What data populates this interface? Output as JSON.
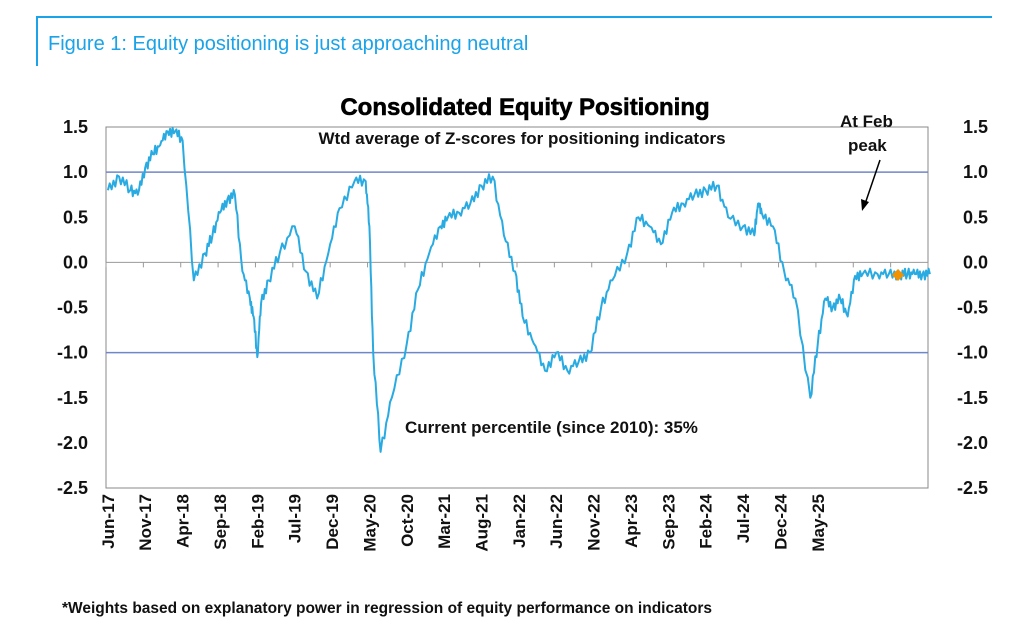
{
  "figure": {
    "title": "Figure 1: Equity positioning is just approaching neutral",
    "footnote": "*Weights based on explanatory power in regression of equity performance on indicators"
  },
  "chart_data": {
    "type": "line",
    "title": "Consolidated Equity Positioning",
    "subtitle": "Wtd average of Z-scores for positioning indicators",
    "xlabel": "",
    "ylabel": "",
    "ylim": [
      -2.5,
      1.5
    ],
    "yticks": [
      "1.5",
      "1.0",
      "0.5",
      "0.0",
      "-0.5",
      "-1.0",
      "-1.5",
      "-2.0",
      "-2.5"
    ],
    "xticks": [
      "Jun-17",
      "Nov-17",
      "Apr-18",
      "Sep-18",
      "Feb-19",
      "Jul-19",
      "Dec-19",
      "May-20",
      "Oct-20",
      "Mar-21",
      "Aug-21",
      "Jan-22",
      "Jun-22",
      "Nov-22",
      "Apr-23",
      "Sep-23",
      "Feb-24",
      "Jul-24",
      "Dec-24",
      "May-25"
    ],
    "reference_lines": [
      1.0,
      -1.0
    ],
    "line_color": "#29abe2",
    "marker_color": "#f39200",
    "series": [
      {
        "name": "Consolidated Equity Positioning",
        "x": [
          0,
          0.3,
          0.6,
          0.8,
          1.0,
          1.2,
          1.4,
          1.6,
          1.8,
          2.0,
          2.3,
          2.6,
          2.8,
          3.0,
          3.2,
          3.4,
          3.6,
          3.8,
          3.9,
          4.0,
          4.1,
          4.3,
          4.6,
          5.0,
          5.3,
          5.6,
          5.9,
          6.2,
          6.6,
          6.9,
          7.0,
          7.1,
          7.3,
          7.6,
          8.0,
          8.3,
          8.6,
          8.9,
          9.1,
          9.4,
          9.7,
          10.0,
          10.3,
          10.6,
          10.9,
          11.1,
          11.4,
          11.7,
          12.0,
          12.3,
          12.6,
          12.9,
          13.2,
          13.5,
          13.9,
          14.2,
          14.5,
          14.8,
          15.1,
          15.4,
          15.7,
          16.0,
          16.3,
          16.6,
          17.0,
          17.3,
          17.4,
          17.5,
          17.8,
          18.1,
          18.4,
          18.8,
          19.0,
          19.2,
          19.4,
          19.6,
          19.8,
          20.0,
          20.2,
          20.6,
          20.9,
          21.2,
          21.4,
          21.6,
          21.8,
          22.0
        ],
        "values": [
          0.8,
          0.95,
          0.8,
          0.75,
          1.05,
          1.2,
          1.3,
          1.45,
          1.45,
          1.35,
          -0.2,
          0.1,
          0.3,
          0.55,
          0.7,
          0.75,
          -0.1,
          -0.4,
          -0.6,
          -1.05,
          -0.45,
          -0.2,
          0.1,
          0.4,
          -0.1,
          -0.4,
          0.1,
          0.6,
          0.9,
          0.9,
          0.4,
          -1.0,
          -2.1,
          -1.5,
          -0.9,
          -0.3,
          0.1,
          0.4,
          0.5,
          0.55,
          0.65,
          0.85,
          0.95,
          0.3,
          -0.1,
          -0.6,
          -0.9,
          -1.2,
          -1.0,
          -1.2,
          -1.1,
          -1.0,
          -0.5,
          -0.2,
          0.1,
          0.5,
          0.4,
          0.2,
          0.55,
          0.65,
          0.75,
          0.8,
          0.85,
          0.5,
          0.4,
          0.3,
          0.65,
          0.55,
          0.4,
          -0.1,
          -0.4,
          -1.5,
          -0.9,
          -0.4,
          -0.5,
          -0.4,
          -0.6,
          -0.15,
          -0.13,
          -0.13,
          -0.13,
          -0.13,
          -0.13,
          -0.13,
          -0.13,
          -0.13
        ]
      }
    ],
    "annotations": [
      {
        "id": "current",
        "text": "Current percentile (since 2010): 35%"
      },
      {
        "id": "peak_line1",
        "text": "At Feb"
      },
      {
        "id": "peak_line2",
        "text": "peak"
      }
    ]
  }
}
